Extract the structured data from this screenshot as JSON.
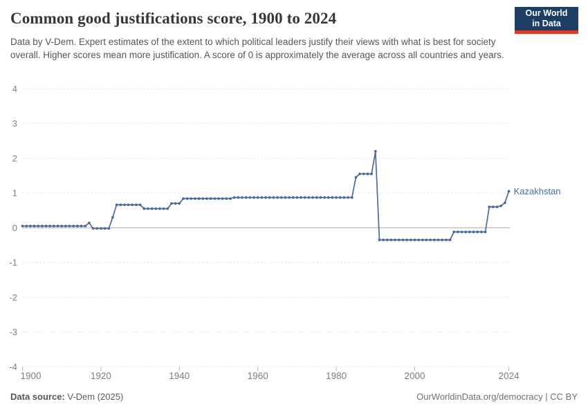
{
  "header": {
    "title": "Common good justifications score, 1900 to 2024",
    "subtitle": "Data by V-Dem. Expert estimates of the extent to which political leaders justify their views with what is best for society overall. Higher scores mean more justification. A score of 0 is approximately the average across all countries and years.",
    "logo": {
      "line1": "Our World",
      "line2": "in Data"
    }
  },
  "footer": {
    "source_label": "Data source:",
    "source_value": " V-Dem (2025)",
    "credit": "OurWorldinData.org/democracy | CC BY"
  },
  "colors": {
    "line": "#4c6a9c",
    "end_label": "#4c6a9c",
    "grid": "#e2e2e2",
    "zero_line": "#a9a9a9",
    "tick_text": "#7d7d7d",
    "tick_mark": "#b5b5b5"
  },
  "chart_data": {
    "type": "line",
    "title": "Common good justifications score, 1900 to 2024",
    "xlabel": "",
    "ylabel": "",
    "xlim": [
      1900,
      2024
    ],
    "ylim": [
      -4,
      4
    ],
    "x_ticks": [
      1900,
      1920,
      1940,
      1960,
      1980,
      2000,
      2024
    ],
    "y_ticks": [
      -4,
      -3,
      -2,
      -1,
      0,
      1,
      2,
      3,
      4
    ],
    "grid": "horizontal-dashed",
    "legend_position": "end-of-line-label",
    "end_label": "Kazakhstan",
    "series": [
      {
        "name": "Kazakhstan",
        "color": "#4c6a9c",
        "points": [
          [
            1900,
            0.05
          ],
          [
            1901,
            0.05
          ],
          [
            1902,
            0.05
          ],
          [
            1903,
            0.05
          ],
          [
            1904,
            0.05
          ],
          [
            1905,
            0.05
          ],
          [
            1906,
            0.05
          ],
          [
            1907,
            0.05
          ],
          [
            1908,
            0.05
          ],
          [
            1909,
            0.05
          ],
          [
            1910,
            0.05
          ],
          [
            1911,
            0.05
          ],
          [
            1912,
            0.05
          ],
          [
            1913,
            0.05
          ],
          [
            1914,
            0.05
          ],
          [
            1915,
            0.05
          ],
          [
            1916,
            0.05
          ],
          [
            1917,
            0.14
          ],
          [
            1918,
            -0.02
          ],
          [
            1919,
            -0.02
          ],
          [
            1920,
            -0.02
          ],
          [
            1921,
            -0.02
          ],
          [
            1922,
            -0.02
          ],
          [
            1923,
            0.3
          ],
          [
            1924,
            0.66
          ],
          [
            1925,
            0.66
          ],
          [
            1926,
            0.66
          ],
          [
            1927,
            0.66
          ],
          [
            1928,
            0.66
          ],
          [
            1929,
            0.66
          ],
          [
            1930,
            0.66
          ],
          [
            1931,
            0.55
          ],
          [
            1932,
            0.55
          ],
          [
            1933,
            0.55
          ],
          [
            1934,
            0.55
          ],
          [
            1935,
            0.55
          ],
          [
            1936,
            0.55
          ],
          [
            1937,
            0.55
          ],
          [
            1938,
            0.7
          ],
          [
            1939,
            0.7
          ],
          [
            1940,
            0.7
          ],
          [
            1941,
            0.84
          ],
          [
            1942,
            0.84
          ],
          [
            1943,
            0.84
          ],
          [
            1944,
            0.84
          ],
          [
            1945,
            0.84
          ],
          [
            1946,
            0.84
          ],
          [
            1947,
            0.84
          ],
          [
            1948,
            0.84
          ],
          [
            1949,
            0.84
          ],
          [
            1950,
            0.84
          ],
          [
            1951,
            0.84
          ],
          [
            1952,
            0.84
          ],
          [
            1953,
            0.84
          ],
          [
            1954,
            0.87
          ],
          [
            1955,
            0.87
          ],
          [
            1956,
            0.87
          ],
          [
            1957,
            0.87
          ],
          [
            1958,
            0.87
          ],
          [
            1959,
            0.87
          ],
          [
            1960,
            0.87
          ],
          [
            1961,
            0.87
          ],
          [
            1962,
            0.87
          ],
          [
            1963,
            0.87
          ],
          [
            1964,
            0.87
          ],
          [
            1965,
            0.87
          ],
          [
            1966,
            0.87
          ],
          [
            1967,
            0.87
          ],
          [
            1968,
            0.87
          ],
          [
            1969,
            0.87
          ],
          [
            1970,
            0.87
          ],
          [
            1971,
            0.87
          ],
          [
            1972,
            0.87
          ],
          [
            1973,
            0.87
          ],
          [
            1974,
            0.87
          ],
          [
            1975,
            0.87
          ],
          [
            1976,
            0.87
          ],
          [
            1977,
            0.87
          ],
          [
            1978,
            0.87
          ],
          [
            1979,
            0.87
          ],
          [
            1980,
            0.87
          ],
          [
            1981,
            0.87
          ],
          [
            1982,
            0.87
          ],
          [
            1983,
            0.87
          ],
          [
            1984,
            0.87
          ],
          [
            1985,
            1.45
          ],
          [
            1986,
            1.55
          ],
          [
            1987,
            1.55
          ],
          [
            1988,
            1.55
          ],
          [
            1989,
            1.55
          ],
          [
            1990,
            2.2
          ],
          [
            1991,
            -0.35
          ],
          [
            1992,
            -0.35
          ],
          [
            1993,
            -0.35
          ],
          [
            1994,
            -0.35
          ],
          [
            1995,
            -0.35
          ],
          [
            1996,
            -0.35
          ],
          [
            1997,
            -0.35
          ],
          [
            1998,
            -0.35
          ],
          [
            1999,
            -0.35
          ],
          [
            2000,
            -0.35
          ],
          [
            2001,
            -0.35
          ],
          [
            2002,
            -0.35
          ],
          [
            2003,
            -0.35
          ],
          [
            2004,
            -0.35
          ],
          [
            2005,
            -0.35
          ],
          [
            2006,
            -0.35
          ],
          [
            2007,
            -0.35
          ],
          [
            2008,
            -0.35
          ],
          [
            2009,
            -0.35
          ],
          [
            2010,
            -0.12
          ],
          [
            2011,
            -0.12
          ],
          [
            2012,
            -0.12
          ],
          [
            2013,
            -0.12
          ],
          [
            2014,
            -0.12
          ],
          [
            2015,
            -0.12
          ],
          [
            2016,
            -0.12
          ],
          [
            2017,
            -0.12
          ],
          [
            2018,
            -0.12
          ],
          [
            2019,
            0.6
          ],
          [
            2020,
            0.6
          ],
          [
            2021,
            0.6
          ],
          [
            2022,
            0.63
          ],
          [
            2023,
            0.72
          ],
          [
            2024,
            1.05
          ]
        ]
      }
    ]
  }
}
